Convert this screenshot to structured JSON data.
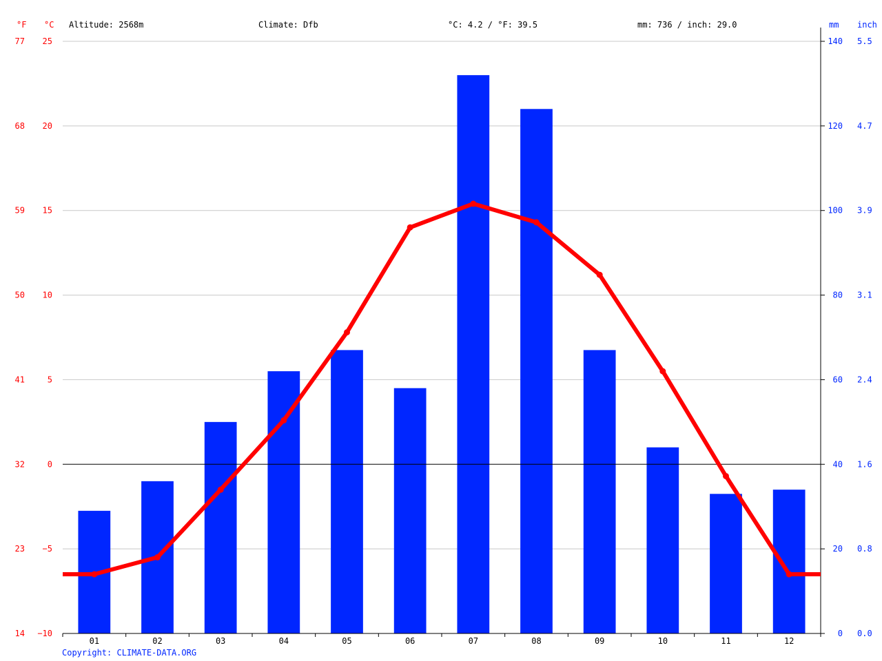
{
  "header": {
    "altitude": "Altitude: 2568m",
    "climate": "Climate: Dfb",
    "temp_avg": "°C: 4.2 / °F: 39.5",
    "precip_total": "mm: 736 / inch: 29.0"
  },
  "units": {
    "fahrenheit": "°F",
    "celsius": "°C",
    "mm": "mm",
    "inch": "inch"
  },
  "copyright": "Copyright: CLIMATE-DATA.ORG",
  "colors": {
    "temperature": "#ff0000",
    "precipitation": "#0026ff",
    "grid": "#c8c8c8",
    "zero_line": "#000000"
  },
  "chart_data": {
    "type": "bar",
    "categories": [
      "01",
      "02",
      "03",
      "04",
      "05",
      "06",
      "07",
      "08",
      "09",
      "10",
      "11",
      "12"
    ],
    "series": [
      {
        "name": "precipitation",
        "type": "bar",
        "axis": "right",
        "unit": "mm",
        "values": [
          29,
          36,
          50,
          62,
          67,
          58,
          132,
          124,
          67,
          44,
          33,
          34
        ]
      },
      {
        "name": "temperature",
        "type": "line",
        "axis": "left",
        "unit": "°C",
        "values": [
          -6.5,
          -5.5,
          -1.5,
          2.6,
          7.8,
          14.0,
          15.4,
          14.3,
          11.2,
          5.5,
          -0.7,
          -6.5
        ]
      }
    ],
    "left_axis_celsius": {
      "ylim": [
        -10,
        25
      ],
      "ticks": [
        -10,
        -5,
        0,
        5,
        10,
        15,
        20,
        25
      ],
      "tick_labels": [
        "−10",
        "−5",
        "0",
        "5",
        "10",
        "15",
        "20",
        "25"
      ]
    },
    "left_axis_fahrenheit": {
      "tick_labels": [
        "14",
        "23",
        "32",
        "41",
        "50",
        "59",
        "68",
        "77"
      ]
    },
    "right_axis_mm": {
      "ylim": [
        0,
        140
      ],
      "tick_labels": [
        "0",
        "20",
        "40",
        "60",
        "80",
        "100",
        "120",
        "140"
      ]
    },
    "right_axis_inch": {
      "tick_labels": [
        "0.0",
        "0.8",
        "1.6",
        "2.4",
        "3.1",
        "3.9",
        "4.7",
        "5.5"
      ]
    },
    "grid": true,
    "zero_line": true
  }
}
